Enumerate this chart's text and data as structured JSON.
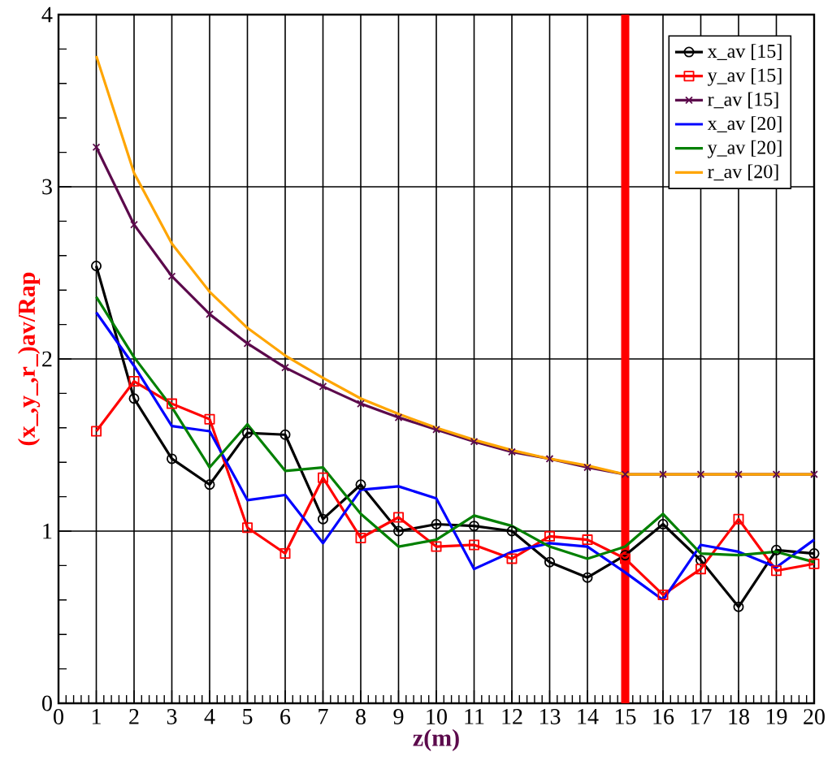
{
  "chart_data": {
    "type": "line",
    "xlabel": "z(m)",
    "ylabel": "(x_,y_,r_)av/Rap",
    "x": [
      1,
      2,
      3,
      4,
      5,
      6,
      7,
      8,
      9,
      10,
      11,
      12,
      13,
      14,
      15,
      16,
      17,
      18,
      19,
      20
    ],
    "series": [
      {
        "name": "x_av [15]",
        "color": "#000000",
        "marker": "circle",
        "values": [
          2.54,
          1.77,
          1.42,
          1.27,
          1.57,
          1.56,
          1.07,
          1.27,
          1.0,
          1.04,
          1.03,
          1.0,
          0.82,
          0.73,
          0.86,
          1.04,
          0.83,
          0.56,
          0.89,
          0.87
        ]
      },
      {
        "name": "y_av [15]",
        "color": "#ff0000",
        "marker": "square",
        "values": [
          1.58,
          1.87,
          1.74,
          1.65,
          1.02,
          0.87,
          1.31,
          0.96,
          1.08,
          0.91,
          0.92,
          0.84,
          0.97,
          0.95,
          0.84,
          0.63,
          0.78,
          1.07,
          0.77,
          0.81
        ]
      },
      {
        "name": "r_av [15]",
        "color": "#5c0a4c",
        "marker": "cross",
        "values": [
          3.23,
          2.78,
          2.48,
          2.26,
          2.09,
          1.95,
          1.84,
          1.74,
          1.66,
          1.59,
          1.52,
          1.46,
          1.42,
          1.37,
          1.33,
          1.33,
          1.33,
          1.33,
          1.33,
          1.33
        ]
      },
      {
        "name": "x_av [20]",
        "color": "#0000ff",
        "marker": "none",
        "values": [
          2.27,
          1.96,
          1.61,
          1.58,
          1.18,
          1.21,
          0.93,
          1.24,
          1.26,
          1.19,
          0.78,
          0.88,
          0.93,
          0.91,
          0.76,
          0.6,
          0.92,
          0.88,
          0.79,
          0.95
        ]
      },
      {
        "name": "y_av [20]",
        "color": "#008000",
        "marker": "none",
        "values": [
          2.36,
          2.01,
          1.72,
          1.37,
          1.62,
          1.35,
          1.37,
          1.1,
          0.91,
          0.95,
          1.09,
          1.03,
          0.91,
          0.84,
          0.91,
          1.1,
          0.87,
          0.86,
          0.88,
          0.82
        ]
      },
      {
        "name": "r_av [20]",
        "color": "#ffa500",
        "marker": "none",
        "values": [
          3.76,
          3.08,
          2.67,
          2.39,
          2.18,
          2.02,
          1.89,
          1.77,
          1.68,
          1.6,
          1.53,
          1.47,
          1.42,
          1.38,
          1.33,
          1.33,
          1.33,
          1.33,
          1.33,
          1.33
        ]
      }
    ],
    "xlim": [
      0,
      20
    ],
    "xticks": [
      0,
      1,
      2,
      3,
      4,
      5,
      6,
      7,
      8,
      9,
      10,
      11,
      12,
      13,
      14,
      15,
      16,
      17,
      18,
      19,
      20
    ],
    "ylim": [
      0,
      4
    ],
    "yticks": [
      0,
      1,
      2,
      3,
      4
    ],
    "grid": true,
    "legend": "top right",
    "ref_lines": [
      {
        "axis": "x",
        "value": 15,
        "color": "#ff0000"
      }
    ]
  }
}
